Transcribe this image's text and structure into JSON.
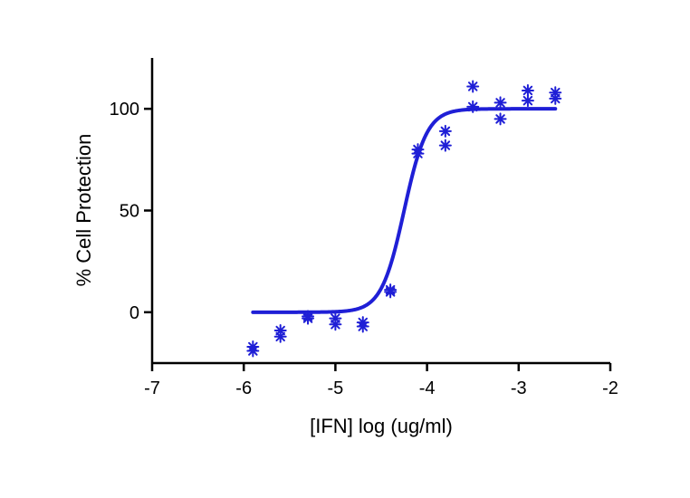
{
  "chart_data": {
    "type": "scatter",
    "title": "",
    "xlabel": "[IFN] log (ug/ml)",
    "ylabel": "% Cell Protection",
    "xlim": [
      -7,
      -2
    ],
    "ylim": [
      -25,
      125
    ],
    "x_ticks": [
      -7,
      -6,
      -5,
      -4,
      -3,
      -2
    ],
    "x_tick_labels": [
      "-7",
      "-6",
      "-5",
      "-4",
      "-3",
      "-2"
    ],
    "y_ticks": [
      0,
      50,
      100
    ],
    "y_tick_labels": [
      "0",
      "50",
      "100"
    ],
    "grid": false,
    "legend": "none",
    "color": "#1f1fd6",
    "marker": "asterisk",
    "series": [
      {
        "x": [
          -5.9,
          -5.9,
          -5.6,
          -5.6,
          -5.3,
          -5.3,
          -5.0,
          -5.0,
          -4.7,
          -4.7,
          -4.4,
          -4.4,
          -4.1,
          -4.1,
          -3.8,
          -3.8,
          -3.5,
          -3.5,
          -3.2,
          -3.2,
          -2.9,
          -2.9,
          -2.6,
          -2.6
        ],
        "y": [
          -17,
          -19,
          -9,
          -12,
          -2,
          -3,
          -3,
          -6,
          -5,
          -7,
          11,
          10,
          80,
          78,
          89,
          82,
          111,
          101,
          103,
          95,
          109,
          104,
          108,
          105
        ]
      }
    ],
    "fit": {
      "model": "sigmoidal dose-response",
      "bottom": 0,
      "top": 100,
      "logEC50": -4.25,
      "hill": 3.5,
      "x_range": [
        -5.9,
        -2.6
      ]
    }
  }
}
